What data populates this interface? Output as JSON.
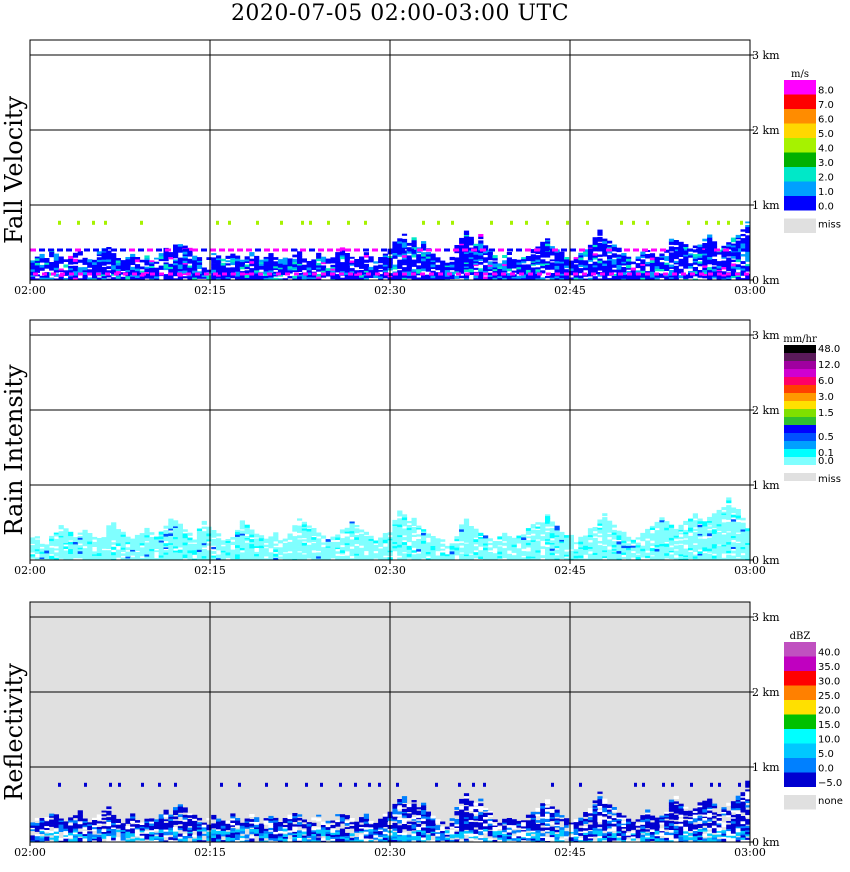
{
  "title": "2020-07-05   02:00-03:00 UTC",
  "x_ticks": [
    "02:00",
    "02:15",
    "02:30",
    "02:45",
    "03:00"
  ],
  "height_ticks": [
    "0 km",
    "1 km",
    "2 km",
    "3 km"
  ],
  "panels": [
    {
      "label": "Fall Velocity",
      "unit": "m/s",
      "background": "#ffffff",
      "legend": [
        {
          "label": "8.0",
          "color": "#ff00ff"
        },
        {
          "label": "7.0",
          "color": "#ff0000"
        },
        {
          "label": "6.0",
          "color": "#ff8c00"
        },
        {
          "label": "5.0",
          "color": "#ffd700"
        },
        {
          "label": "4.0",
          "color": "#a6f200"
        },
        {
          "label": "3.0",
          "color": "#00b000"
        },
        {
          "label": "2.0",
          "color": "#00e8c8"
        },
        {
          "label": "1.0",
          "color": "#00a0ff"
        },
        {
          "label": "0.0",
          "color": "#0000ff"
        },
        {
          "label": "miss",
          "color": "#e0e0e0"
        }
      ]
    },
    {
      "label": "Rain Intensity",
      "unit": "mm/hr",
      "background": "#ffffff",
      "legend": [
        {
          "label": "48.0",
          "color": "#000000"
        },
        {
          "label": "",
          "color": "#5a1a5a"
        },
        {
          "label": "12.0",
          "color": "#a000a0"
        },
        {
          "label": "",
          "color": "#d000d0"
        },
        {
          "label": "6.0",
          "color": "#ff0066"
        },
        {
          "label": "",
          "color": "#ff4000"
        },
        {
          "label": "3.0",
          "color": "#ff9900"
        },
        {
          "label": "",
          "color": "#ffe000"
        },
        {
          "label": "1.5",
          "color": "#80e000"
        },
        {
          "label": "",
          "color": "#30c030"
        },
        {
          "label": "",
          "color": "#0000ff"
        },
        {
          "label": "0.5",
          "color": "#0050ff"
        },
        {
          "label": "",
          "color": "#00a0ff"
        },
        {
          "label": "0.1",
          "color": "#00ffff"
        },
        {
          "label": "0.0",
          "color": "#80ffff"
        },
        {
          "label": "miss",
          "color": "#e0e0e0"
        }
      ]
    },
    {
      "label": "Reflectivity",
      "unit": "dBZ",
      "background": "#e0e0e0",
      "legend": [
        {
          "label": "40.0",
          "color": "#c050c0"
        },
        {
          "label": "35.0",
          "color": "#c000c0"
        },
        {
          "label": "30.0",
          "color": "#ff0000"
        },
        {
          "label": "25.0",
          "color": "#ff8000"
        },
        {
          "label": "20.0",
          "color": "#ffe000"
        },
        {
          "label": "15.0",
          "color": "#00c000"
        },
        {
          "label": "10.0",
          "color": "#00ffff"
        },
        {
          "label": "5.0",
          "color": "#00c8ff"
        },
        {
          "label": "0.0",
          "color": "#0080ff"
        },
        {
          "label": "−5.0",
          "color": "#0000d0"
        },
        {
          "label": "none",
          "color": "#e0e0e0"
        }
      ]
    }
  ],
  "chart_data": [
    {
      "type": "heatmap",
      "title": "Fall Velocity",
      "unit": "m/s",
      "x_range": [
        "02:00",
        "03:00"
      ],
      "y_range_km": [
        0,
        3.2
      ],
      "grid": true,
      "column_top_km": [
        0.25,
        0.3,
        0.35,
        0.3,
        0.4,
        0.35,
        0.3,
        0.25,
        0.3,
        0.35,
        0.4,
        0.3,
        0.25,
        0.3,
        0.35,
        0.4,
        0.45,
        0.35,
        0.3,
        0.25,
        0.3,
        0.35,
        0.3,
        0.25,
        0.3,
        0.28,
        0.3,
        0.35,
        0.4,
        0.35,
        0.45,
        0.5,
        0.45,
        0.4,
        0.35,
        0.3,
        0.25,
        0.3,
        0.35,
        0.3,
        0.28,
        0.3,
        0.35,
        0.3,
        0.25,
        0.3,
        0.35,
        0.3,
        0.28,
        0.3,
        0.35,
        0.3,
        0.25,
        0.3,
        0.35,
        0.4,
        0.35,
        0.3,
        0.25,
        0.3,
        0.35,
        0.3,
        0.28,
        0.3,
        0.35,
        0.4,
        0.35,
        0.3,
        0.25,
        0.3,
        0.35,
        0.3,
        0.25,
        0.3,
        0.35,
        0.4,
        0.5,
        0.55,
        0.6,
        0.5,
        0.55,
        0.45,
        0.5,
        0.4,
        0.35,
        0.3,
        0.25,
        0.2,
        0.3,
        0.45,
        0.55,
        0.65,
        0.55,
        0.5,
        0.6,
        0.45,
        0.4,
        0.3,
        0.25,
        0.3,
        0.35,
        0.3,
        0.25,
        0.3,
        0.35,
        0.4,
        0.45,
        0.5,
        0.55,
        0.45,
        0.4,
        0.35,
        0.3,
        0.25,
        0.3,
        0.35,
        0.4,
        0.45,
        0.55,
        0.65,
        0.55,
        0.5,
        0.45,
        0.4,
        0.35,
        0.3,
        0.25,
        0.3,
        0.35,
        0.4,
        0.35,
        0.3,
        0.35,
        0.4,
        0.55,
        0.6,
        0.5,
        0.45,
        0.4,
        0.45,
        0.5,
        0.55,
        0.6,
        0.5,
        0.4,
        0.45,
        0.5,
        0.55,
        0.6,
        0.65,
        0.8,
        0.7,
        0.6,
        0.5,
        0.4,
        0.35,
        0.3
      ],
      "mean_velocity_ms": 0.6,
      "upper_dots_km": 0.75
    },
    {
      "type": "heatmap",
      "title": "Rain Intensity",
      "unit": "mm/hr",
      "x_range": [
        "02:00",
        "03:00"
      ],
      "y_range_km": [
        0,
        3.2
      ],
      "grid": true,
      "column_top_km": [
        0.35,
        0.3,
        0.25,
        0.2,
        0.3,
        0.35,
        0.45,
        0.4,
        0.35,
        0.3,
        0.35,
        0.4,
        0.35,
        0.3,
        0.28,
        0.3,
        0.45,
        0.5,
        0.4,
        0.35,
        0.3,
        0.28,
        0.3,
        0.35,
        0.4,
        0.35,
        0.3,
        0.35,
        0.45,
        0.55,
        0.5,
        0.45,
        0.4,
        0.35,
        0.3,
        0.4,
        0.5,
        0.45,
        0.4,
        0.35,
        0.3,
        0.28,
        0.3,
        0.4,
        0.5,
        0.45,
        0.4,
        0.35,
        0.3,
        0.28,
        0.3,
        0.35,
        0.3,
        0.28,
        0.35,
        0.45,
        0.55,
        0.5,
        0.45,
        0.4,
        0.35,
        0.3,
        0.25,
        0.3,
        0.35,
        0.4,
        0.45,
        0.5,
        0.45,
        0.4,
        0.35,
        0.3,
        0.25,
        0.3,
        0.35,
        0.4,
        0.55,
        0.65,
        0.6,
        0.5,
        0.55,
        0.45,
        0.4,
        0.35,
        0.3,
        0.28,
        0.25,
        0.2,
        0.25,
        0.35,
        0.45,
        0.55,
        0.45,
        0.4,
        0.35,
        0.3,
        0.28,
        0.25,
        0.3,
        0.35,
        0.3,
        0.28,
        0.3,
        0.35,
        0.4,
        0.45,
        0.5,
        0.55,
        0.6,
        0.5,
        0.45,
        0.4,
        0.35,
        0.3,
        0.25,
        0.3,
        0.35,
        0.4,
        0.45,
        0.55,
        0.6,
        0.5,
        0.45,
        0.4,
        0.35,
        0.3,
        0.28,
        0.3,
        0.35,
        0.4,
        0.45,
        0.5,
        0.55,
        0.5,
        0.45,
        0.4,
        0.45,
        0.5,
        0.55,
        0.6,
        0.55,
        0.5,
        0.55,
        0.6,
        0.65,
        0.7,
        0.8,
        0.7,
        0.65,
        0.55,
        0.45,
        0.35,
        0.25
      ],
      "typical_intensity_mmhr": 0.05
    },
    {
      "type": "heatmap",
      "title": "Reflectivity",
      "unit": "dBZ",
      "x_range": [
        "02:00",
        "03:00"
      ],
      "y_range_km": [
        0,
        3.2
      ],
      "grid": true,
      "column_top_km": [
        0.25,
        0.3,
        0.35,
        0.3,
        0.4,
        0.35,
        0.3,
        0.25,
        0.3,
        0.35,
        0.4,
        0.3,
        0.25,
        0.3,
        0.35,
        0.4,
        0.45,
        0.35,
        0.3,
        0.25,
        0.3,
        0.35,
        0.3,
        0.25,
        0.3,
        0.28,
        0.3,
        0.35,
        0.4,
        0.35,
        0.45,
        0.5,
        0.45,
        0.4,
        0.35,
        0.3,
        0.25,
        0.3,
        0.35,
        0.3,
        0.28,
        0.3,
        0.35,
        0.3,
        0.25,
        0.3,
        0.35,
        0.3,
        0.28,
        0.3,
        0.35,
        0.3,
        0.25,
        0.3,
        0.35,
        0.4,
        0.35,
        0.3,
        0.25,
        0.3,
        0.35,
        0.3,
        0.28,
        0.3,
        0.35,
        0.4,
        0.35,
        0.3,
        0.25,
        0.3,
        0.35,
        0.3,
        0.25,
        0.3,
        0.35,
        0.4,
        0.5,
        0.55,
        0.6,
        0.5,
        0.55,
        0.45,
        0.5,
        0.4,
        0.35,
        0.3,
        0.25,
        0.2,
        0.3,
        0.45,
        0.55,
        0.65,
        0.55,
        0.5,
        0.6,
        0.45,
        0.4,
        0.3,
        0.25,
        0.3,
        0.35,
        0.3,
        0.25,
        0.3,
        0.35,
        0.4,
        0.45,
        0.5,
        0.55,
        0.45,
        0.4,
        0.35,
        0.3,
        0.25,
        0.3,
        0.35,
        0.4,
        0.45,
        0.55,
        0.65,
        0.55,
        0.5,
        0.45,
        0.4,
        0.35,
        0.3,
        0.25,
        0.3,
        0.35,
        0.4,
        0.35,
        0.3,
        0.35,
        0.4,
        0.55,
        0.6,
        0.5,
        0.45,
        0.4,
        0.45,
        0.5,
        0.55,
        0.6,
        0.5,
        0.4,
        0.45,
        0.5,
        0.55,
        0.6,
        0.65,
        0.8,
        0.7,
        0.6,
        0.5,
        0.4,
        0.35,
        0.3
      ],
      "typical_reflectivity_dbz": -2.5,
      "upper_dots_km": 0.75
    }
  ]
}
